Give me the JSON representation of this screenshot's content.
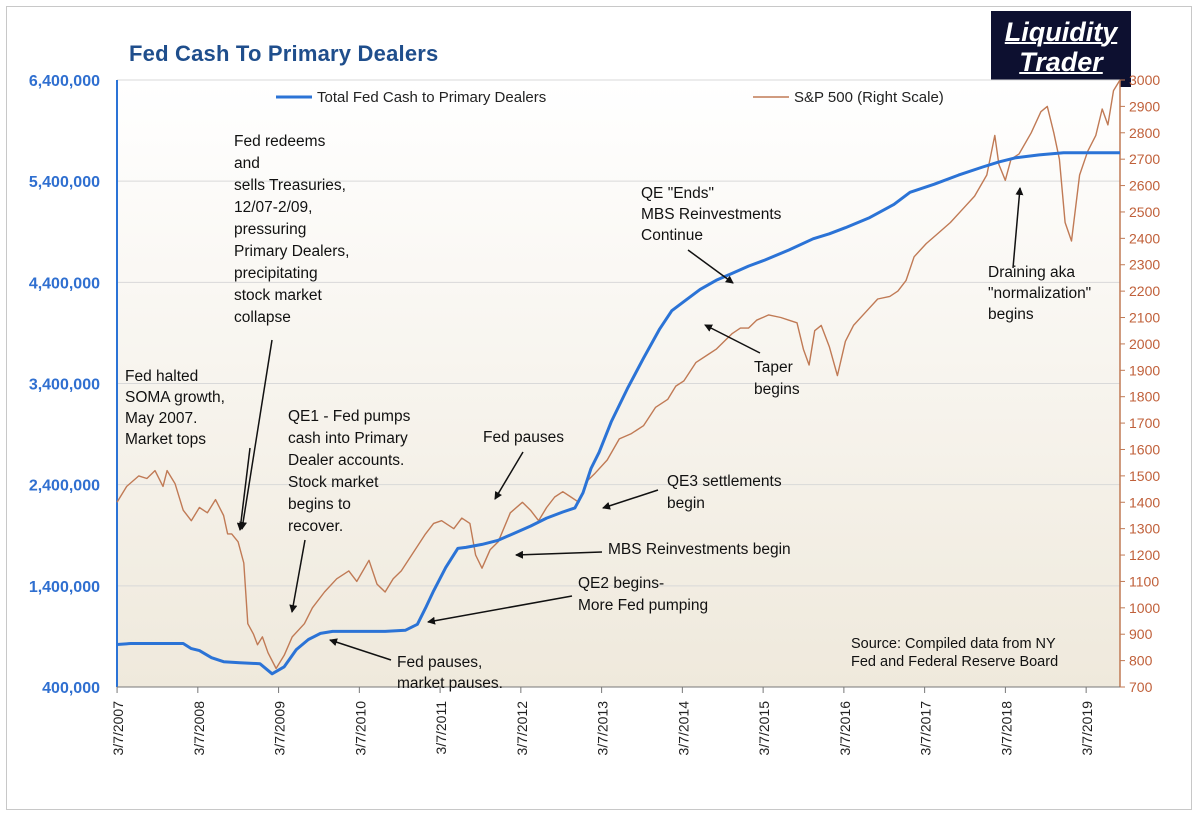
{
  "title": "Fed Cash To Primary Dealers",
  "logo": {
    "line1": "Liquidity",
    "line2": "Trader"
  },
  "colors": {
    "fed": "#2b73d6",
    "sp": "#c07a55",
    "left_axis_text": "#2f6fd0",
    "right_axis_text": "#c0603a",
    "title": "#1f4e8c"
  },
  "chart_data": {
    "type": "line",
    "title": "Fed Cash To Primary Dealers",
    "x_ticks": [
      "3/7/2007",
      "3/7/2008",
      "3/7/2009",
      "3/7/2010",
      "3/7/2011",
      "3/7/2012",
      "3/7/2013",
      "3/7/2014",
      "3/7/2015",
      "3/7/2016",
      "3/7/2017",
      "3/7/2018",
      "3/7/2019"
    ],
    "x_range": [
      2007.18,
      2019.6
    ],
    "y_left": {
      "range": [
        400000,
        6400000
      ],
      "ticks": [
        "400,000",
        "1,400,000",
        "2,400,000",
        "3,400,000",
        "4,400,000",
        "5,400,000",
        "6,400,000"
      ]
    },
    "y_right": {
      "range": [
        700,
        3000
      ],
      "ticks": [
        "700",
        "800",
        "900",
        "1000",
        "1100",
        "1200",
        "1300",
        "1400",
        "1500",
        "1600",
        "1700",
        "1800",
        "1900",
        "2000",
        "2100",
        "2200",
        "2300",
        "2400",
        "2500",
        "2600",
        "2700",
        "2800",
        "2900",
        "3000"
      ]
    },
    "legend": {
      "position": "top",
      "fed_label": "Total Fed Cash to Primary Dealers",
      "sp_label": "S&P 500 (Right Scale)"
    },
    "series": [
      {
        "name": "Total Fed Cash to Primary Dealers",
        "axis": "left",
        "x": [
          2007.18,
          2007.35,
          2007.6,
          2007.9,
          2008.0,
          2008.1,
          2008.2,
          2008.35,
          2008.5,
          2008.7,
          2008.95,
          2009.1,
          2009.25,
          2009.4,
          2009.55,
          2009.7,
          2009.85,
          2010.0,
          2010.25,
          2010.5,
          2010.75,
          2010.9,
          2011.0,
          2011.1,
          2011.25,
          2011.4,
          2011.5,
          2011.7,
          2011.9,
          2012.1,
          2012.3,
          2012.5,
          2012.7,
          2012.85,
          2012.95,
          2013.05,
          2013.15,
          2013.3,
          2013.5,
          2013.7,
          2013.9,
          2014.05,
          2014.2,
          2014.4,
          2014.6,
          2014.8,
          2015.0,
          2015.2,
          2015.5,
          2015.8,
          2016.0,
          2016.2,
          2016.5,
          2016.8,
          2017.0,
          2017.3,
          2017.6,
          2017.9,
          2018.1,
          2018.3,
          2018.6,
          2018.9,
          2019.2,
          2019.4,
          2019.6
        ],
        "y": [
          820000,
          830000,
          830000,
          830000,
          830000,
          780000,
          760000,
          690000,
          650000,
          640000,
          630000,
          530000,
          600000,
          770000,
          870000,
          930000,
          950000,
          950000,
          950000,
          950000,
          960000,
          1020000,
          1180000,
          1350000,
          1580000,
          1770000,
          1780000,
          1810000,
          1850000,
          1920000,
          1990000,
          2070000,
          2130000,
          2170000,
          2320000,
          2560000,
          2720000,
          3020000,
          3350000,
          3650000,
          3940000,
          4120000,
          4210000,
          4330000,
          4420000,
          4490000,
          4560000,
          4620000,
          4720000,
          4830000,
          4880000,
          4940000,
          5040000,
          5170000,
          5290000,
          5370000,
          5460000,
          5540000,
          5590000,
          5630000,
          5660000,
          5680000,
          5680000,
          5680000,
          5680000
        ]
      },
      {
        "name": "S&P 500 (Right Scale)",
        "axis": "right",
        "x": [
          2007.18,
          2007.3,
          2007.45,
          2007.55,
          2007.65,
          2007.75,
          2007.8,
          2007.9,
          2008.0,
          2008.1,
          2008.2,
          2008.3,
          2008.4,
          2008.5,
          2008.55,
          2008.6,
          2008.68,
          2008.75,
          2008.8,
          2008.87,
          2008.92,
          2008.98,
          2009.05,
          2009.15,
          2009.25,
          2009.35,
          2009.5,
          2009.6,
          2009.75,
          2009.9,
          2010.05,
          2010.15,
          2010.3,
          2010.4,
          2010.5,
          2010.6,
          2010.7,
          2010.85,
          2011.0,
          2011.1,
          2011.2,
          2011.35,
          2011.45,
          2011.55,
          2011.62,
          2011.7,
          2011.8,
          2011.9,
          2012.05,
          2012.2,
          2012.3,
          2012.4,
          2012.5,
          2012.6,
          2012.7,
          2012.8,
          2012.9,
          2013.0,
          2013.1,
          2013.25,
          2013.4,
          2013.55,
          2013.7,
          2013.85,
          2014.0,
          2014.1,
          2014.2,
          2014.35,
          2014.5,
          2014.6,
          2014.7,
          2014.8,
          2014.9,
          2015.0,
          2015.1,
          2015.25,
          2015.4,
          2015.5,
          2015.6,
          2015.68,
          2015.75,
          2015.82,
          2015.9,
          2016.0,
          2016.1,
          2016.2,
          2016.3,
          2016.45,
          2016.6,
          2016.75,
          2016.85,
          2016.95,
          2017.05,
          2017.2,
          2017.35,
          2017.5,
          2017.65,
          2017.8,
          2017.95,
          2018.05,
          2018.1,
          2018.18,
          2018.25,
          2018.35,
          2018.5,
          2018.62,
          2018.7,
          2018.78,
          2018.85,
          2018.92,
          2019.0,
          2019.1,
          2019.2,
          2019.3,
          2019.38,
          2019.45,
          2019.52,
          2019.6
        ],
        "y": [
          1400,
          1460,
          1500,
          1490,
          1520,
          1460,
          1520,
          1470,
          1370,
          1330,
          1380,
          1360,
          1410,
          1350,
          1280,
          1280,
          1250,
          1170,
          940,
          900,
          860,
          890,
          830,
          770,
          820,
          890,
          940,
          1000,
          1060,
          1110,
          1140,
          1100,
          1180,
          1090,
          1060,
          1110,
          1140,
          1210,
          1280,
          1320,
          1330,
          1300,
          1340,
          1320,
          1200,
          1150,
          1220,
          1250,
          1360,
          1400,
          1370,
          1330,
          1380,
          1420,
          1440,
          1420,
          1400,
          1480,
          1510,
          1560,
          1640,
          1660,
          1690,
          1760,
          1790,
          1840,
          1860,
          1930,
          1960,
          1980,
          2010,
          2040,
          2060,
          2060,
          2090,
          2110,
          2100,
          2090,
          2080,
          1980,
          1920,
          2050,
          2070,
          1990,
          1880,
          2010,
          2070,
          2120,
          2170,
          2180,
          2200,
          2240,
          2330,
          2380,
          2420,
          2460,
          2510,
          2560,
          2640,
          2790,
          2680,
          2620,
          2700,
          2720,
          2800,
          2880,
          2900,
          2800,
          2700,
          2460,
          2390,
          2640,
          2730,
          2790,
          2890,
          2830,
          2960,
          3000
        ]
      }
    ],
    "annotations": [
      {
        "lines": [
          "Fed halted",
          "SOMA growth,",
          "May 2007.",
          "Market tops"
        ]
      },
      {
        "lines": [
          "Fed redeems",
          "and",
          "sells Treasuries,",
          "12/07-2/09,",
          "pressuring",
          "Primary Dealers,",
          "precipitating",
          "stock market",
          "collapse"
        ]
      },
      {
        "lines": [
          "QE1 - Fed pumps",
          "cash into Primary",
          "Dealer accounts.",
          "Stock market",
          "begins to",
          "recover."
        ]
      },
      {
        "lines": [
          "Fed pauses"
        ]
      },
      {
        "lines": [
          "QE3 settlements",
          "begin"
        ]
      },
      {
        "lines": [
          "MBS Reinvestments begin"
        ]
      },
      {
        "lines": [
          "QE2 begins-",
          "More Fed pumping"
        ]
      },
      {
        "lines": [
          "Fed pauses,",
          "market pauses."
        ]
      },
      {
        "lines": [
          "QE \"Ends\"",
          "MBS Reinvestments",
          "Continue"
        ]
      },
      {
        "lines": [
          "Taper",
          "begins"
        ]
      },
      {
        "lines": [
          "Draining aka",
          "\"normalization\"",
          "begins"
        ]
      },
      {
        "lines": [
          "Source: Compiled data from NY",
          "Fed and Federal Reserve Board"
        ]
      }
    ]
  }
}
